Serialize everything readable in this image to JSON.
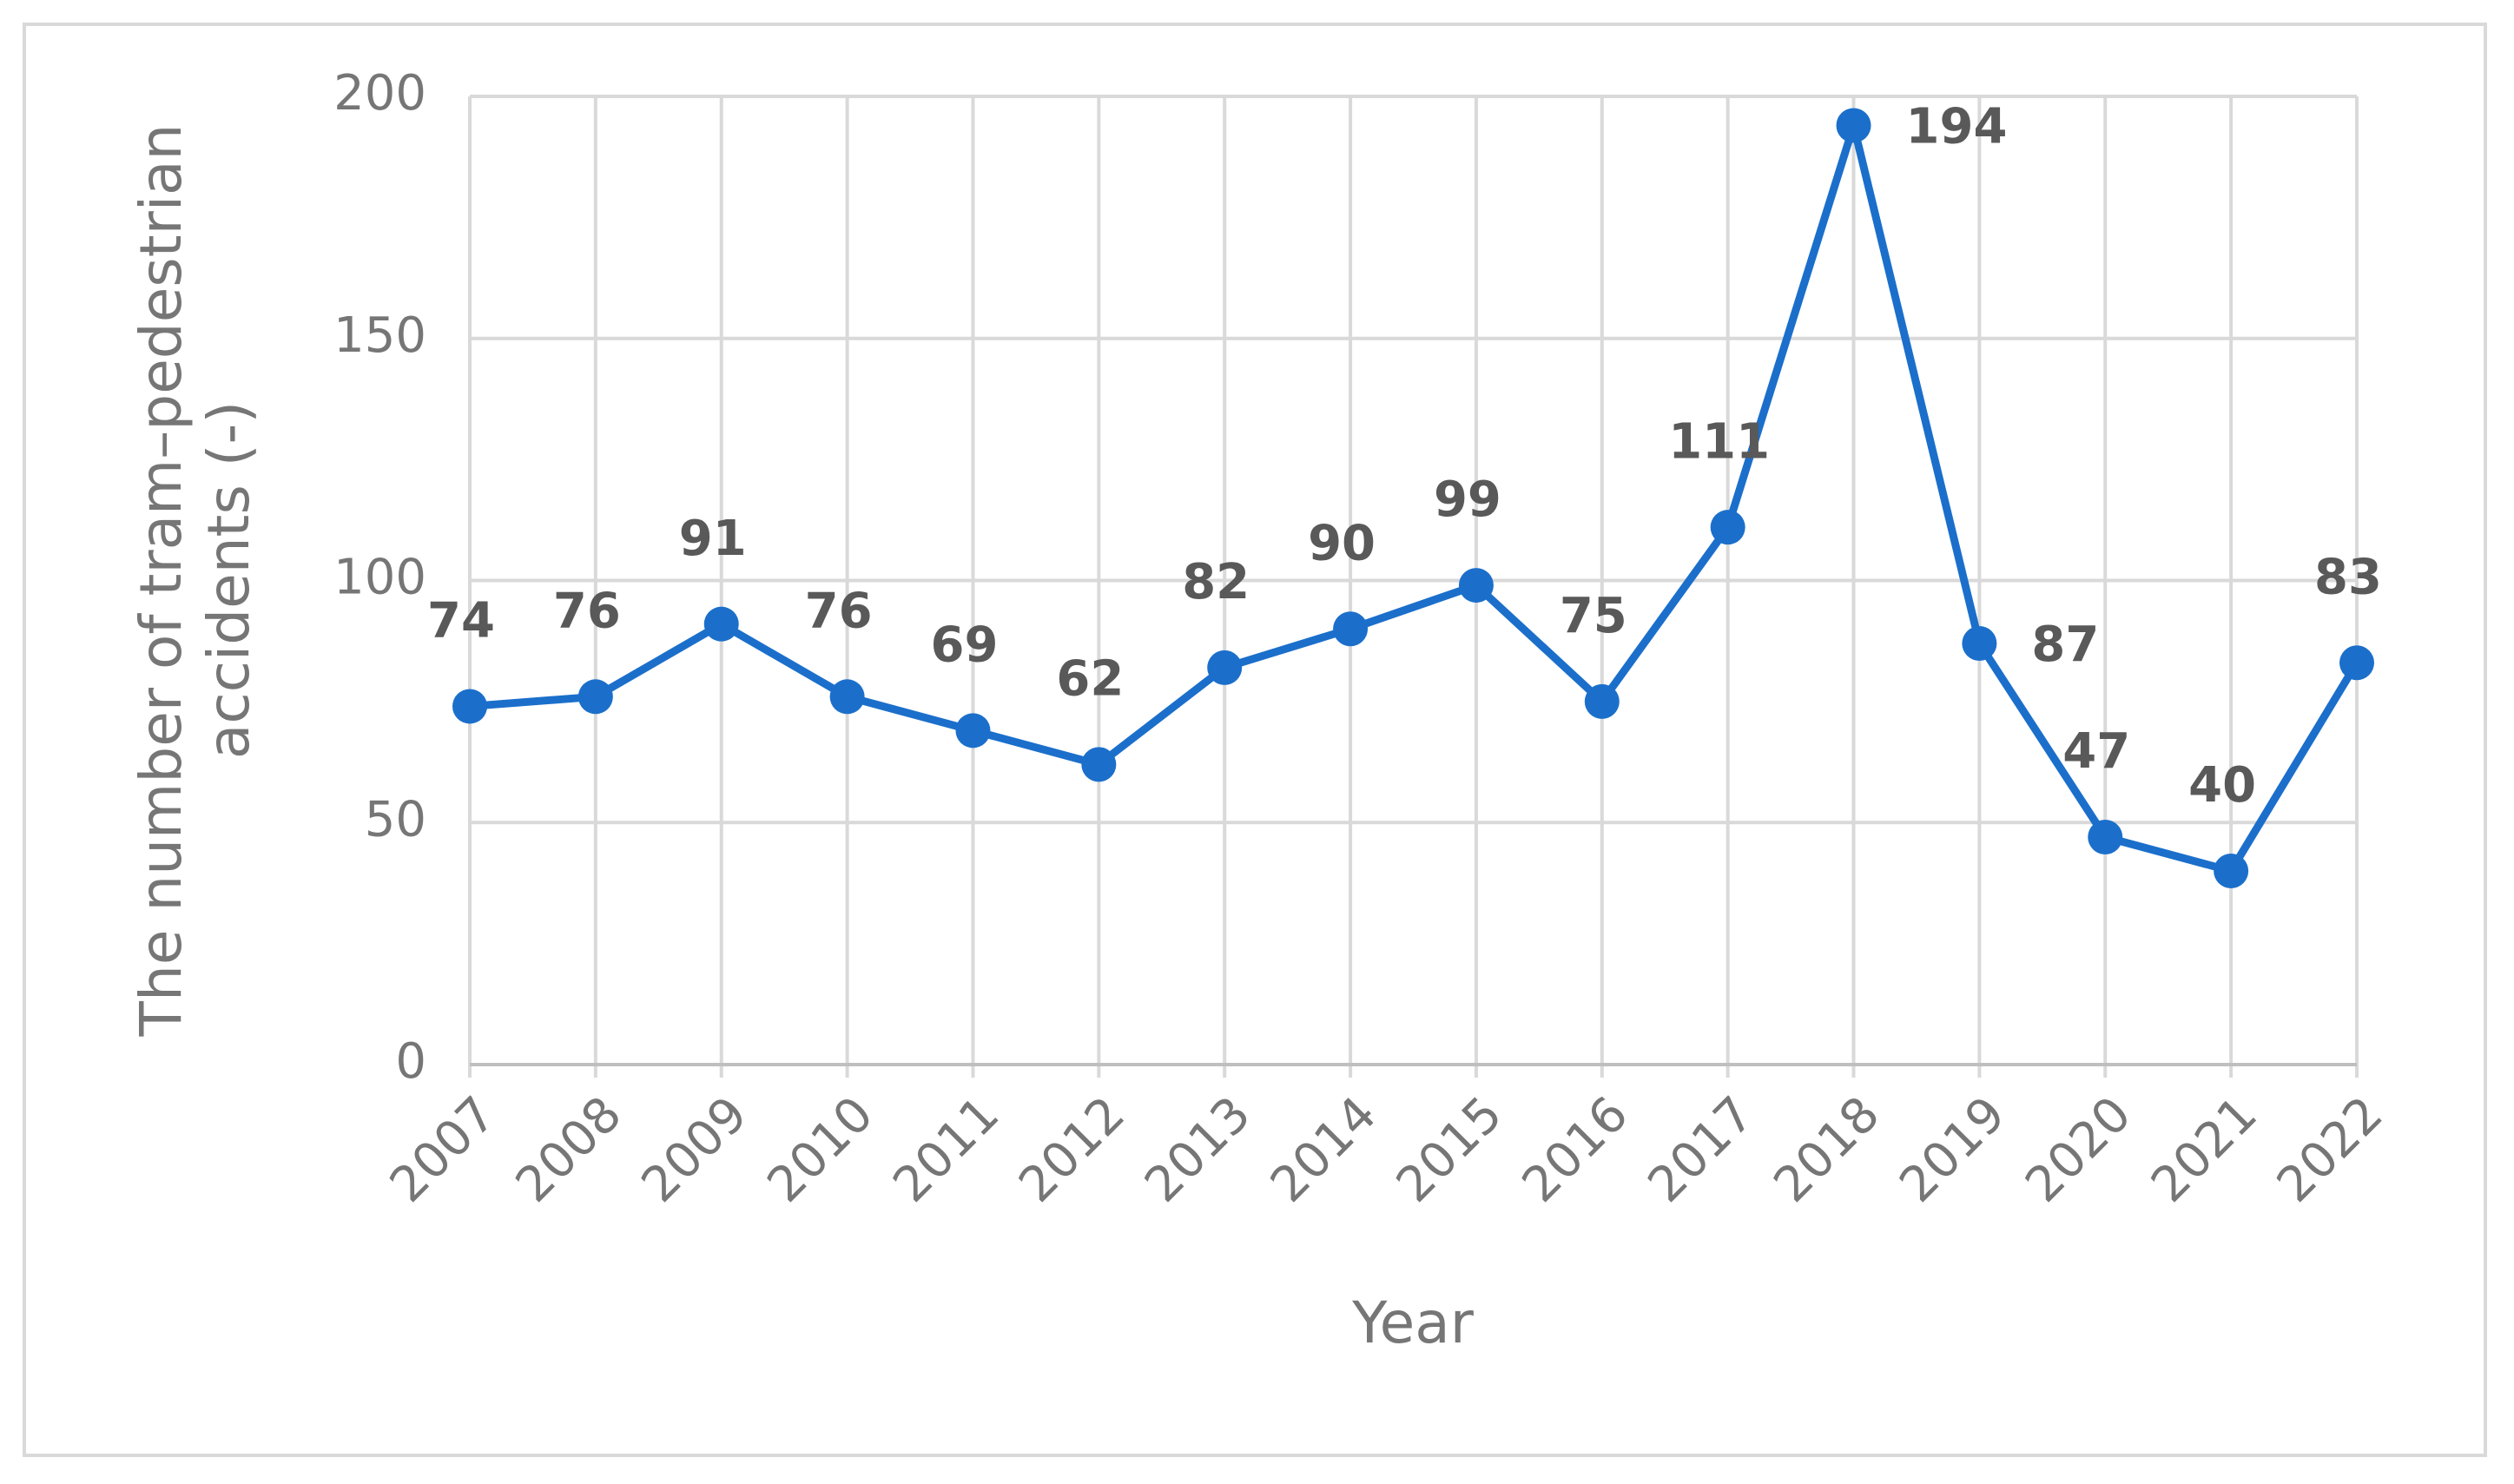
{
  "chart_data": {
    "type": "line",
    "xlabel": "Year",
    "ylabel": [
      "The number of tram–pedestrian",
      "accidents (-)"
    ],
    "categories": [
      "2007",
      "2008",
      "2009",
      "2010",
      "2011",
      "2012",
      "2013",
      "2014",
      "2015",
      "2016",
      "2017",
      "2018",
      "2019",
      "2020",
      "2021",
      "2022"
    ],
    "series": [
      {
        "color": "#1b6fcb",
        "values": [
          74,
          76,
          91,
          76,
          69,
          62,
          82,
          90,
          99,
          75,
          111,
          194,
          87,
          47,
          40,
          83
        ]
      }
    ],
    "ylim": [
      0,
      200
    ],
    "yticks": [
      0,
      50,
      100,
      150,
      200
    ],
    "grid": true
  }
}
